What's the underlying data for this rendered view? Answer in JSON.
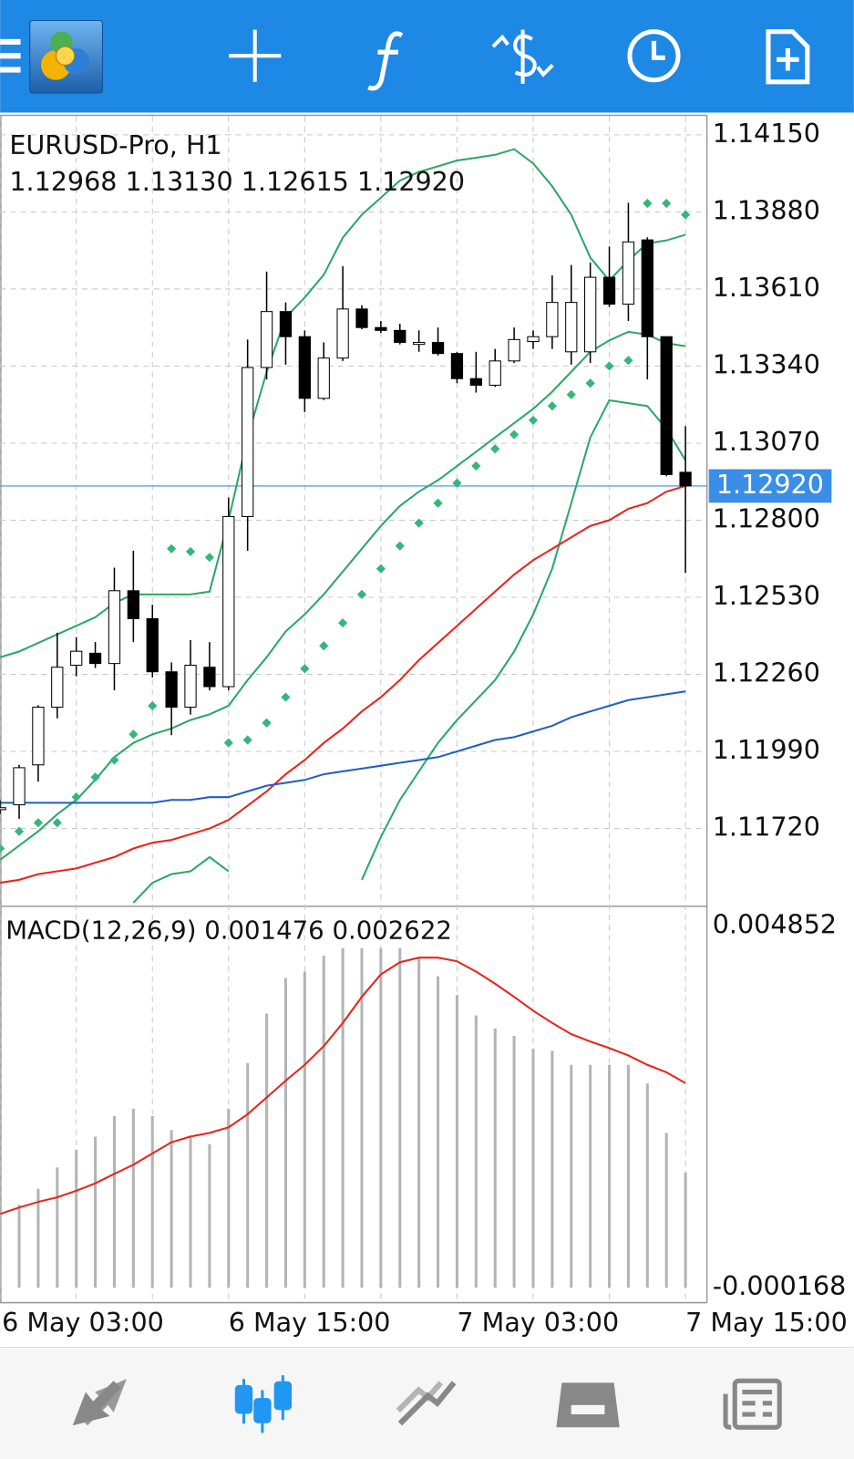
{
  "chart_data": [
    {
      "type": "candlestick",
      "title": "EURUSD-Pro, H1",
      "subtitle": "1.12968 1.13130 1.12615 1.12920",
      "categories": [
        "6 May 03:00",
        null,
        null,
        null,
        null,
        null,
        null,
        null,
        null,
        null,
        null,
        null,
        "6 May 15:00",
        null,
        null,
        null,
        null,
        null,
        null,
        null,
        null,
        null,
        null,
        null,
        "7 May 03:00",
        null,
        null,
        null,
        null,
        null,
        null,
        null,
        null,
        null,
        null,
        null,
        "7 May 15:00"
      ],
      "open": [
        1.11786,
        1.11803,
        1.11943,
        1.12145,
        1.12292,
        1.12334,
        1.12298,
        1.12553,
        1.12455,
        1.12269,
        1.12145,
        1.12285,
        1.12217,
        1.12813,
        1.13335,
        1.13531,
        1.13443,
        1.13227,
        1.13368,
        1.1354,
        1.13475,
        1.13465,
        1.13416,
        1.13423,
        1.13384,
        1.13296,
        1.13273,
        1.13358,
        1.13426,
        1.13443,
        1.1339,
        1.1339,
        1.13651,
        1.13557,
        1.13782,
        1.13443,
        1.12968
      ],
      "high": [
        1.11819,
        1.11943,
        1.12152,
        1.12406,
        1.1239,
        1.12373,
        1.12634,
        1.12693,
        1.12504,
        1.12302,
        1.1238,
        1.12373,
        1.12879,
        1.13433,
        1.13671,
        1.13563,
        1.13465,
        1.13423,
        1.1369,
        1.13553,
        1.13498,
        1.13488,
        1.13465,
        1.13475,
        1.1339,
        1.1339,
        1.134,
        1.13475,
        1.13465,
        1.13658,
        1.13694,
        1.13703,
        1.13759,
        1.13912,
        1.13791,
        1.13443,
        1.1313
      ],
      "low": [
        1.1177,
        1.11754,
        1.11884,
        1.12106,
        1.12253,
        1.12282,
        1.12204,
        1.12373,
        1.12249,
        1.12047,
        1.12119,
        1.12204,
        1.12204,
        1.12693,
        1.13293,
        1.13345,
        1.13179,
        1.13221,
        1.13358,
        1.13469,
        1.13456,
        1.13416,
        1.1339,
        1.13377,
        1.1328,
        1.13247,
        1.13267,
        1.13351,
        1.134,
        1.134,
        1.13345,
        1.13351,
        1.13547,
        1.13498,
        1.13293,
        1.12954,
        1.12615
      ],
      "close": [
        1.11793,
        1.11933,
        1.12145,
        1.12285,
        1.12341,
        1.12298,
        1.12553,
        1.12455,
        1.12269,
        1.12145,
        1.12292,
        1.12217,
        1.12813,
        1.13335,
        1.13531,
        1.13443,
        1.13227,
        1.13368,
        1.1354,
        1.13475,
        1.13465,
        1.13423,
        1.13423,
        1.13384,
        1.13296,
        1.13273,
        1.13358,
        1.13433,
        1.13443,
        1.13563,
        1.13563,
        1.13651,
        1.13557,
        1.13775,
        1.13443,
        1.1296,
        1.1292
      ],
      "up_color": "#ffffff",
      "down_color": "#000000",
      "overlays": [
        {
          "type": "line",
          "color": "#2aa866",
          "values": [
            1.1232,
            1.1234,
            1.1237,
            1.124,
            1.1243,
            1.1246,
            1.1251,
            1.1254,
            1.1254,
            1.1254,
            1.1254,
            1.1255,
            1.128,
            1.1309,
            1.1332,
            1.1351,
            1.1358,
            1.1366,
            1.1379,
            1.1387,
            1.1393,
            1.1399,
            1.1402,
            1.1404,
            1.1406,
            1.1407,
            1.1408,
            1.141,
            1.1405,
            1.1397,
            1.1387,
            1.1372,
            1.1364,
            1.1371,
            1.1377,
            1.1378,
            1.138
          ]
        },
        {
          "type": "line",
          "color": "#2aa866",
          "values": [
            1.1161,
            1.1166,
            1.1171,
            1.1177,
            1.1182,
            1.1189,
            1.1197,
            1.1202,
            1.1205,
            1.1207,
            1.121,
            1.1212,
            1.1215,
            1.1224,
            1.1232,
            1.1241,
            1.1247,
            1.1254,
            1.1262,
            1.127,
            1.1278,
            1.1285,
            1.129,
            1.1294,
            1.1299,
            1.1304,
            1.1309,
            1.1314,
            1.1319,
            1.1325,
            1.1332,
            1.1339,
            1.1343,
            1.1346,
            1.1345,
            1.1342,
            1.1341
          ]
        },
        {
          "type": "line",
          "color": "#2aa866",
          "values": [
            null,
            null,
            null,
            null,
            null,
            null,
            null,
            1.1146,
            1.1153,
            1.1156,
            1.1157,
            1.1162,
            1.1157,
            null,
            null,
            null,
            null,
            null,
            null,
            1.1154,
            1.1169,
            1.1182,
            1.1192,
            1.1202,
            1.121,
            1.1217,
            1.1224,
            1.1234,
            1.1247,
            1.1263,
            1.1286,
            1.1309,
            1.1322,
            1.1321,
            1.132,
            1.1312,
            1.1301
          ]
        },
        {
          "type": "line",
          "color": "#e8231c",
          "values": [
            1.1153,
            1.1154,
            1.1156,
            1.1157,
            1.1158,
            1.116,
            1.1162,
            1.1165,
            1.1167,
            1.1168,
            1.117,
            1.1172,
            1.1175,
            1.118,
            1.1185,
            1.1191,
            1.1196,
            1.1202,
            1.1207,
            1.1213,
            1.1218,
            1.1224,
            1.1231,
            1.1237,
            1.1243,
            1.1249,
            1.1255,
            1.1261,
            1.1266,
            1.127,
            1.1274,
            1.1278,
            1.128,
            1.1284,
            1.1286,
            1.129,
            1.1292
          ]
        },
        {
          "type": "line",
          "color": "#1f5fbf",
          "values": [
            1.1181,
            1.1181,
            1.1181,
            1.1181,
            1.1181,
            1.1181,
            1.1181,
            1.1181,
            1.1181,
            1.1182,
            1.1182,
            1.1183,
            1.1183,
            1.1185,
            1.1187,
            1.1188,
            1.1189,
            1.1191,
            1.1192,
            1.1193,
            1.1194,
            1.1195,
            1.1196,
            1.1197,
            1.1199,
            1.1201,
            1.1203,
            1.1204,
            1.1206,
            1.1208,
            1.1211,
            1.1213,
            1.1215,
            1.1217,
            1.1218,
            1.1219,
            1.122
          ]
        },
        {
          "type": "scatter",
          "color": "#35b779",
          "values": [
            1.1165,
            1.1171,
            1.1174,
            1.1174,
            1.1183,
            1.119,
            1.1196,
            1.1205,
            1.1215,
            1.127,
            1.1269,
            1.1267,
            1.1202,
            1.1203,
            1.1209,
            1.1218,
            1.1228,
            1.1236,
            1.1244,
            1.1254,
            1.1263,
            1.1271,
            1.1279,
            1.1286,
            1.1293,
            1.1299,
            1.1305,
            1.131,
            1.1315,
            1.132,
            1.1324,
            1.1328,
            1.1334,
            1.1336,
            1.1391,
            1.1391,
            1.1387
          ]
        }
      ],
      "current_price": {
        "value": 1.1292,
        "label": "1.12920",
        "color": "#3b8ee6"
      },
      "ylim": [
        1.11454,
        1.14215
      ],
      "yticks": [
        {
          "value": 1.1415,
          "label": "1.14150"
        },
        {
          "value": 1.1388,
          "label": "1.13880"
        },
        {
          "value": 1.1361,
          "label": "1.13610"
        },
        {
          "value": 1.1334,
          "label": "1.13340"
        },
        {
          "value": 1.1307,
          "label": "1.13070"
        },
        {
          "value": 1.128,
          "label": "1.12800"
        },
        {
          "value": 1.1253,
          "label": "1.12530"
        },
        {
          "value": 1.1226,
          "label": "1.12260"
        },
        {
          "value": 1.1199,
          "label": "1.11990"
        },
        {
          "value": 1.1172,
          "label": "1.11720"
        }
      ],
      "grid": true
    },
    {
      "type": "macd",
      "title": "MACD(12,26,9)",
      "series": [
        {
          "type": "bar",
          "color": "#b4b4b4",
          "values": [
            0.000944,
            0.001064,
            0.001267,
            0.001542,
            0.001769,
            0.001936,
            0.002199,
            0.002294,
            0.002199,
            0.00202,
            0.001936,
            0.00184,
            0.002294,
            0.00288,
            0.003513,
            0.003967,
            0.004051,
            0.004254,
            0.00435,
            0.00435,
            0.00435,
            0.00435,
            0.00423,
            0.003991,
            0.003752,
            0.003489,
            0.003322,
            0.003227,
            0.003059,
            0.003035,
            0.002856,
            0.002856,
            0.002856,
            0.002856,
            0.002617,
            0.001984,
            0.001476
          ]
        },
        {
          "type": "line",
          "color": "#e8231c",
          "values": [
            0.000944,
            0.001028,
            0.001099,
            0.001159,
            0.001243,
            0.001338,
            0.001458,
            0.001577,
            0.001721,
            0.001864,
            0.001936,
            0.001984,
            0.002055,
            0.002223,
            0.002438,
            0.002653,
            0.002856,
            0.003095,
            0.003394,
            0.003728,
            0.004015,
            0.004171,
            0.00423,
            0.00423,
            0.004183,
            0.004051,
            0.003896,
            0.003728,
            0.003549,
            0.003394,
            0.00325,
            0.003155,
            0.003071,
            0.002976,
            0.002856,
            0.00276,
            0.002622
          ]
        }
      ],
      "ylim": [
        -0.000168,
        0.004852
      ],
      "yticks": [
        0.004852,
        -0.000168
      ]
    }
  ]
}
